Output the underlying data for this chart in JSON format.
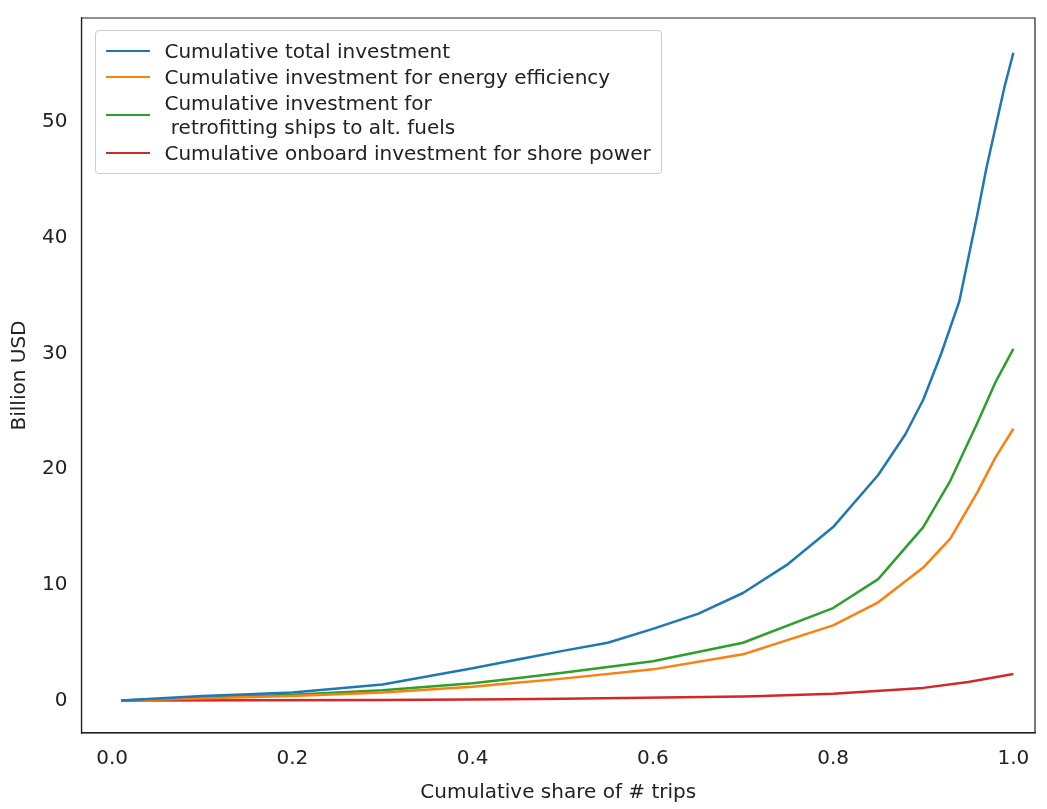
{
  "chart_data": {
    "type": "line",
    "xlabel": "Cumulative share of # trips",
    "ylabel": "Billion USD",
    "xlim": [
      -0.034,
      1.024
    ],
    "ylim": [
      -2.8,
      59
    ],
    "xticks": [
      {
        "value": 0,
        "label": "0.0"
      },
      {
        "value": 0.2,
        "label": "0.2"
      },
      {
        "value": 0.4,
        "label": "0.4"
      },
      {
        "value": 0.6,
        "label": "0.6"
      },
      {
        "value": 0.8,
        "label": "0.8"
      },
      {
        "value": 1,
        "label": "1.0"
      }
    ],
    "yticks": [
      0,
      10,
      20,
      30,
      40,
      50
    ],
    "grid": false,
    "legend": "top left",
    "marker": "none",
    "line_style": "solid",
    "series": [
      {
        "name": "Cumulative total investment",
        "color": "#1f77b4",
        "x": [
          0.01,
          0.1,
          0.2,
          0.3,
          0.4,
          0.5,
          0.55,
          0.6,
          0.65,
          0.7,
          0.75,
          0.8,
          0.85,
          0.88,
          0.9,
          0.92,
          0.94,
          0.96,
          0.97,
          0.98,
          0.99,
          1.0
        ],
        "values": [
          0,
          0.4,
          0.7,
          1.4,
          2.8,
          4.3,
          5,
          6.2,
          7.5,
          9.3,
          11.8,
          15,
          19.5,
          23,
          26,
          30,
          34.5,
          42,
          46,
          49.5,
          53,
          56
        ]
      },
      {
        "name": "Cumulative investment for energy efficiency",
        "color": "#ff7f0e",
        "x": [
          0.01,
          0.1,
          0.2,
          0.3,
          0.4,
          0.5,
          0.6,
          0.7,
          0.8,
          0.85,
          0.9,
          0.93,
          0.96,
          0.98,
          1.0
        ],
        "values": [
          0,
          0.2,
          0.4,
          0.7,
          1.2,
          1.9,
          2.7,
          4.0,
          6.5,
          8.5,
          11.5,
          14,
          18,
          21,
          23.5
        ]
      },
      {
        "name": "Cumulative investment for\n retrofitting ships to alt. fuels",
        "color": "#2ca02c",
        "x": [
          0.01,
          0.1,
          0.2,
          0.3,
          0.4,
          0.5,
          0.6,
          0.7,
          0.8,
          0.85,
          0.9,
          0.93,
          0.96,
          0.98,
          1.0
        ],
        "values": [
          0,
          0.25,
          0.5,
          0.9,
          1.5,
          2.4,
          3.4,
          5,
          8,
          10.5,
          15,
          19,
          24,
          27.5,
          30.4
        ]
      },
      {
        "name": "Cumulative onboard investment for shore power",
        "color": "#d62728",
        "x": [
          0.01,
          0.3,
          0.5,
          0.7,
          0.8,
          0.9,
          0.95,
          1.0
        ],
        "values": [
          0,
          0.05,
          0.15,
          0.35,
          0.6,
          1.1,
          1.6,
          2.3
        ]
      }
    ]
  }
}
